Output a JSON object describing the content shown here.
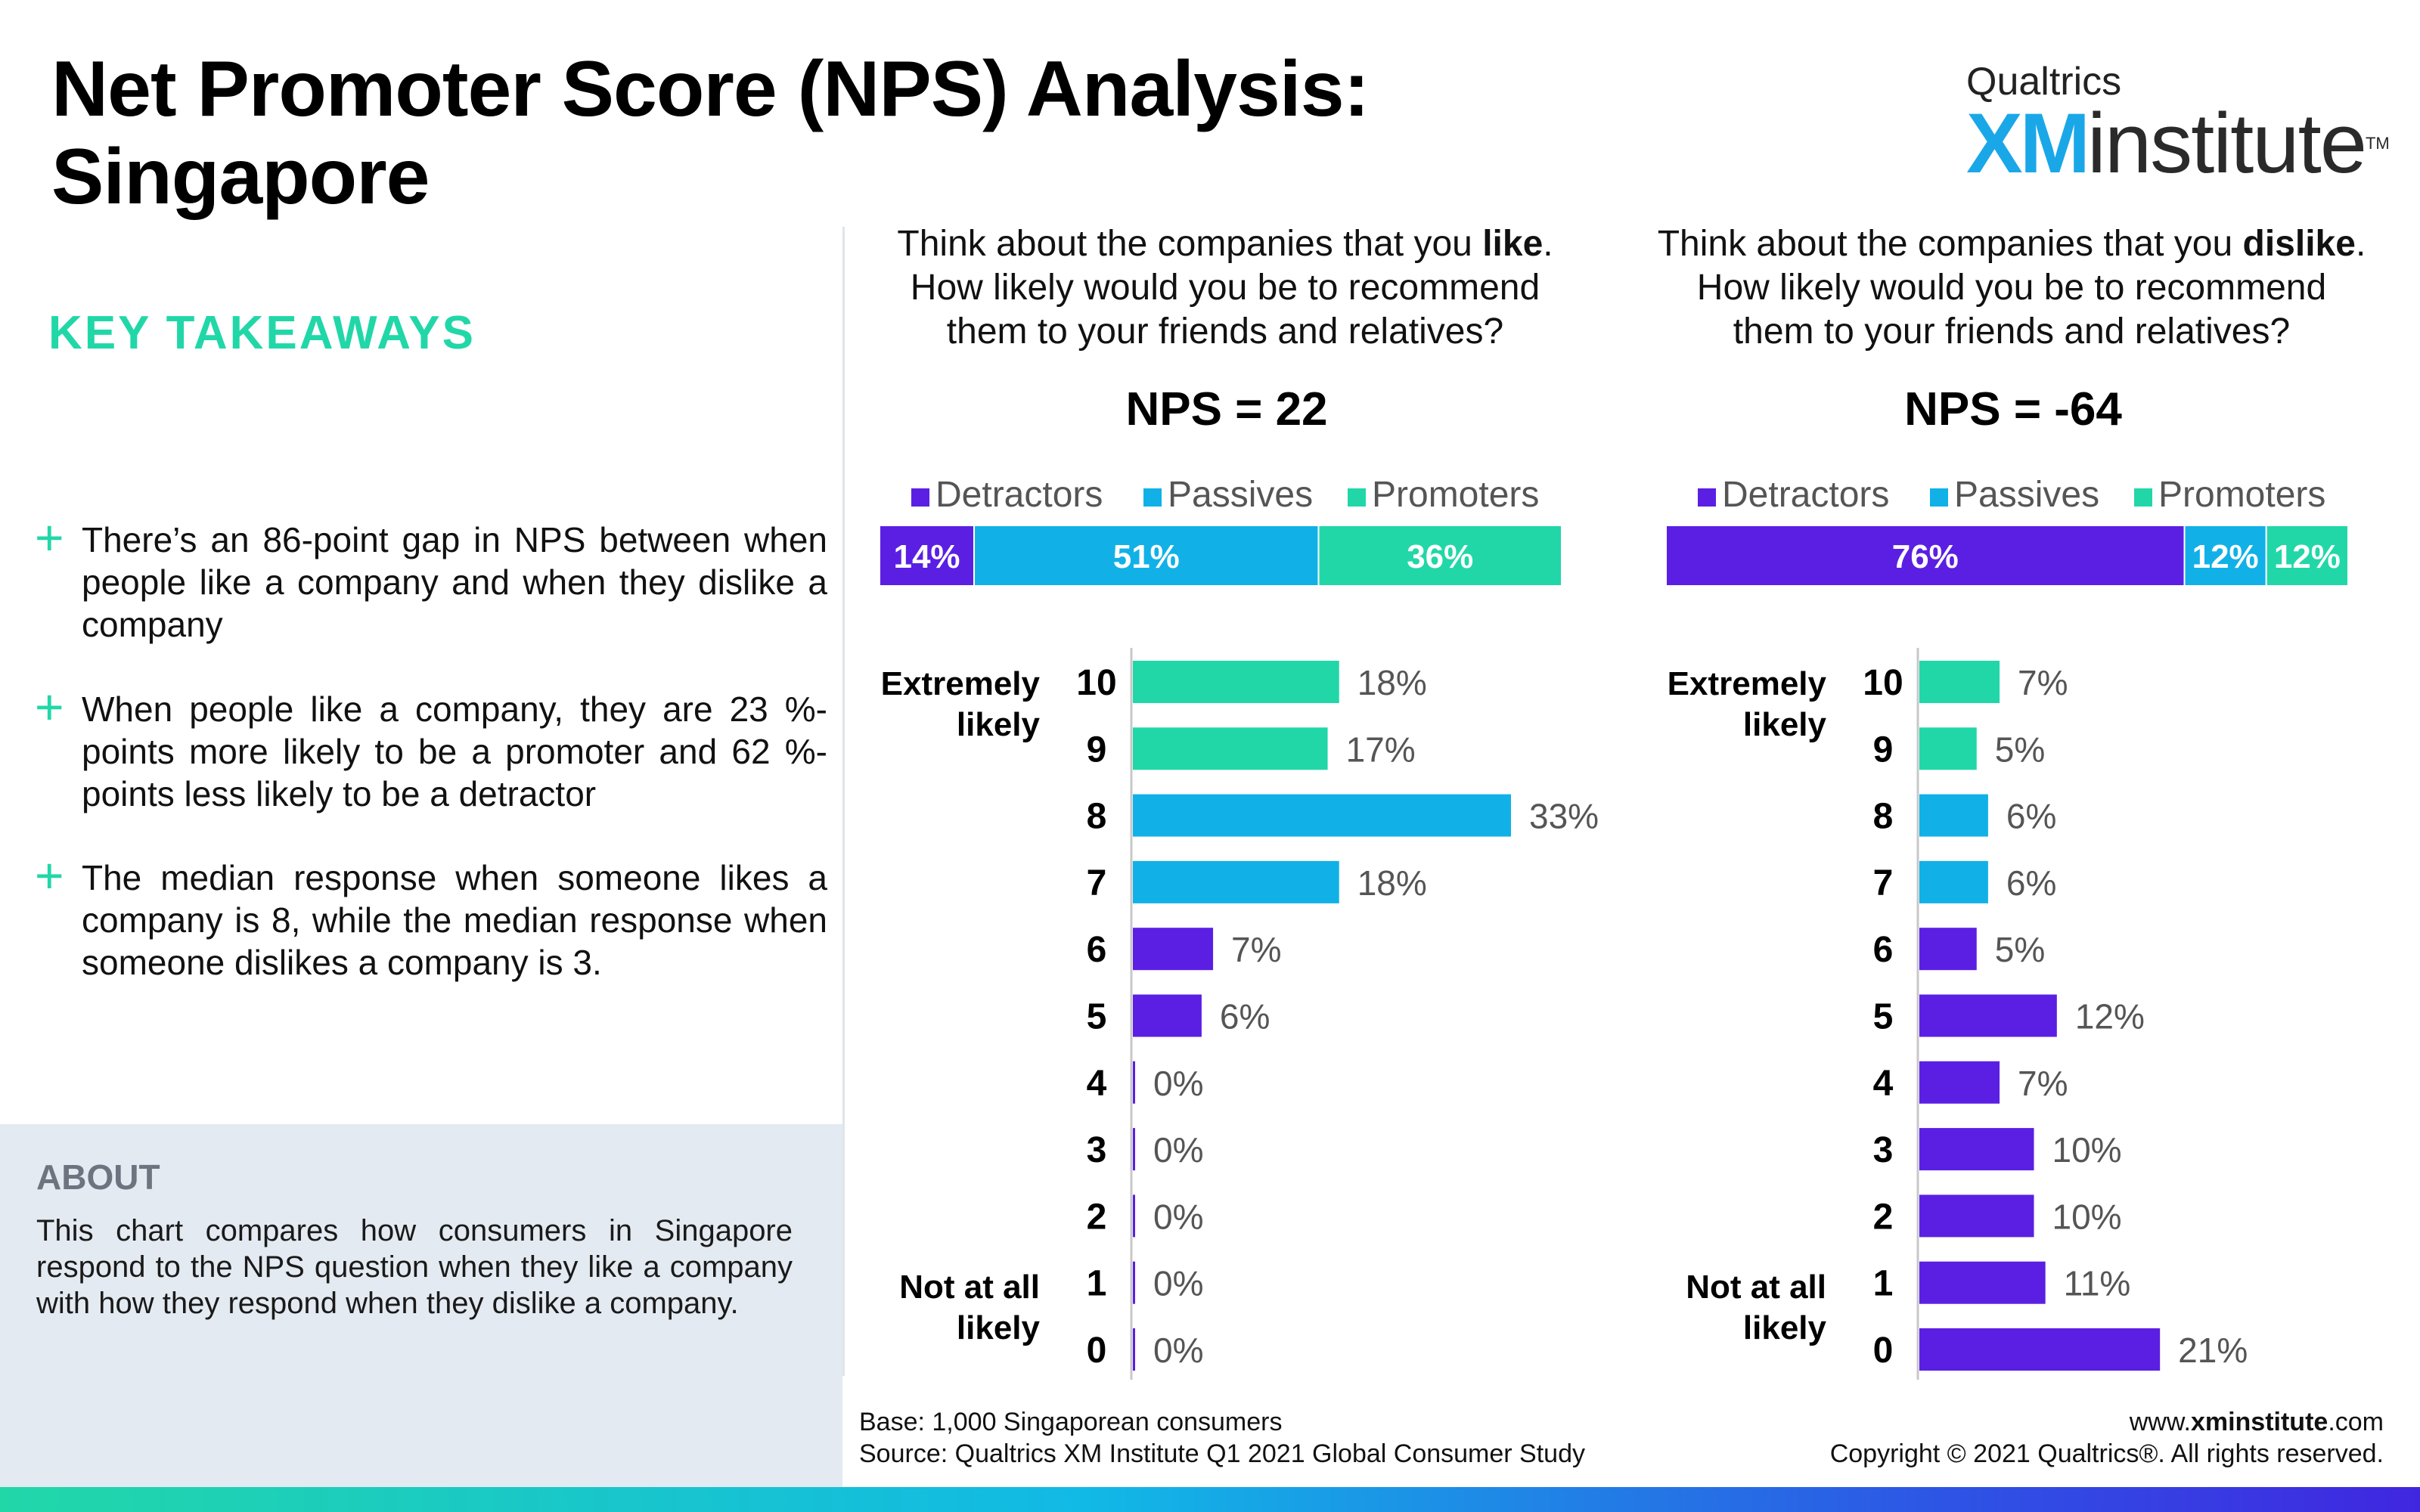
{
  "header": {
    "title": "Net Promoter Score (NPS) Analysis: Singapore",
    "logo_brand": "Qualtrics",
    "logo_xm": "XM",
    "logo_institute": "institute",
    "logo_tm": "TM"
  },
  "key_takeaways": {
    "title": "KEY TAKEAWAYS",
    "items": [
      "There’s an 86-point gap in NPS between when people like a company and when they dislike a company",
      "When people like a company, they are 23 %-points more likely to be a promoter and 62 %-points less likely to be a detractor",
      "The median response when someone likes a company is 8, while the median response when someone dislikes a company is 3."
    ]
  },
  "about": {
    "title": "ABOUT",
    "text": "This chart compares how consumers in Singapore respond to the NPS question when they like a company with how they respond when they dislike a company."
  },
  "footer": {
    "base": "Base: 1,000 Singaporean consumers",
    "source": "Source: Qualtrics XM Institute Q1 2021 Global Consumer Study",
    "website_prefix": "www.",
    "website_bold": "xminstitute",
    "website_suffix": ".com",
    "copyright": "Copyright © 2021 Qualtrics®. All rights reserved."
  },
  "colors": {
    "detractors": "#5b1fe3",
    "passives": "#11b1e8",
    "promoters": "#21d7a8",
    "takeaway_accent": "#21d7a8"
  },
  "chart_data": [
    {
      "type": "bar",
      "question_parts": [
        "Think about the companies that you ",
        "like",
        ".",
        "How likely would you be to recommend",
        "them to your friends and relatives?"
      ],
      "nps_label": "NPS = 22",
      "legend": [
        "Detractors",
        "Passives",
        "Promoters"
      ],
      "stacked": {
        "Detractors": 14,
        "Passives": 51,
        "Promoters": 36
      },
      "stacked_labels": [
        "14%",
        "51%",
        "36%"
      ],
      "scale_top_label": [
        "Extremely",
        "likely"
      ],
      "scale_bottom_label": [
        "Not at all",
        "likely"
      ],
      "categories": [
        "10",
        "9",
        "8",
        "7",
        "6",
        "5",
        "4",
        "3",
        "2",
        "1",
        "0"
      ],
      "values": [
        18,
        17,
        33,
        18,
        7,
        6,
        0,
        0,
        0,
        0,
        0
      ],
      "value_labels": [
        "18%",
        "17%",
        "33%",
        "18%",
        "7%",
        "6%",
        "0%",
        "0%",
        "0%",
        "0%",
        "0%"
      ],
      "groups": [
        "Promoters",
        "Promoters",
        "Passives",
        "Passives",
        "Detractors",
        "Detractors",
        "Detractors",
        "Detractors",
        "Detractors",
        "Detractors",
        "Detractors"
      ],
      "xlim": [
        0,
        33
      ]
    },
    {
      "type": "bar",
      "question_parts": [
        "Think about the companies that you ",
        "dislike",
        ".",
        "How likely would you be to recommend",
        "them to your friends and relatives?"
      ],
      "nps_label": "NPS = -64",
      "legend": [
        "Detractors",
        "Passives",
        "Promoters"
      ],
      "stacked": {
        "Detractors": 76,
        "Passives": 12,
        "Promoters": 12
      },
      "stacked_labels": [
        "76%",
        "12%",
        "12%"
      ],
      "scale_top_label": [
        "Extremely",
        "likely"
      ],
      "scale_bottom_label": [
        "Not at all",
        "likely"
      ],
      "categories": [
        "10",
        "9",
        "8",
        "7",
        "6",
        "5",
        "4",
        "3",
        "2",
        "1",
        "0"
      ],
      "values": [
        7,
        5,
        6,
        6,
        5,
        12,
        7,
        10,
        10,
        11,
        21
      ],
      "value_labels": [
        "7%",
        "5%",
        "6%",
        "6%",
        "5%",
        "12%",
        "7%",
        "10%",
        "10%",
        "11%",
        "21%"
      ],
      "groups": [
        "Promoters",
        "Promoters",
        "Passives",
        "Passives",
        "Detractors",
        "Detractors",
        "Detractors",
        "Detractors",
        "Detractors",
        "Detractors",
        "Detractors"
      ],
      "xlim": [
        0,
        33
      ]
    }
  ]
}
